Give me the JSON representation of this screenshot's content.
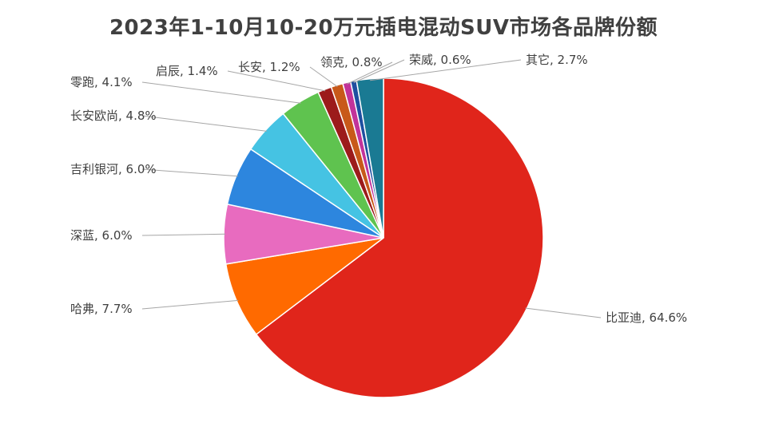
{
  "chart_data": {
    "type": "pie",
    "title": "2023年1-10月10-20万元插电混动SUV市场各品牌份额",
    "start_angle_deg": 0,
    "direction": "clockwise",
    "slices": [
      {
        "name": "比亚迪",
        "value": 64.6,
        "label": "比亚迪, 64.6%",
        "color": "#e0251b"
      },
      {
        "name": "哈弗",
        "value": 7.7,
        "label": "哈弗, 7.7%",
        "color": "#ff6a00"
      },
      {
        "name": "深蓝",
        "value": 6.0,
        "label": "深蓝, 6.0%",
        "color": "#e86bbf"
      },
      {
        "name": "吉利银河",
        "value": 6.0,
        "label": "吉利银河, 6.0%",
        "color": "#2d86de"
      },
      {
        "name": "长安欧尚",
        "value": 4.8,
        "label": "长安欧尚, 4.8%",
        "color": "#45c3e3"
      },
      {
        "name": "零跑",
        "value": 4.1,
        "label": "零跑, 4.1%",
        "color": "#5fc34f"
      },
      {
        "name": "启辰",
        "value": 1.4,
        "label": "启辰, 1.4%",
        "color": "#9c1b1b"
      },
      {
        "name": "长安",
        "value": 1.2,
        "label": "长安, 1.2%",
        "color": "#c8591a"
      },
      {
        "name": "领克",
        "value": 0.8,
        "label": "领克, 0.8%",
        "color": "#c2339a"
      },
      {
        "name": "荣威",
        "value": 0.6,
        "label": "荣威, 0.6%",
        "color": "#1f4fa0"
      },
      {
        "name": "其它",
        "value": 2.7,
        "label": "其它, 2.7%",
        "color": "#1a7a93"
      }
    ]
  }
}
